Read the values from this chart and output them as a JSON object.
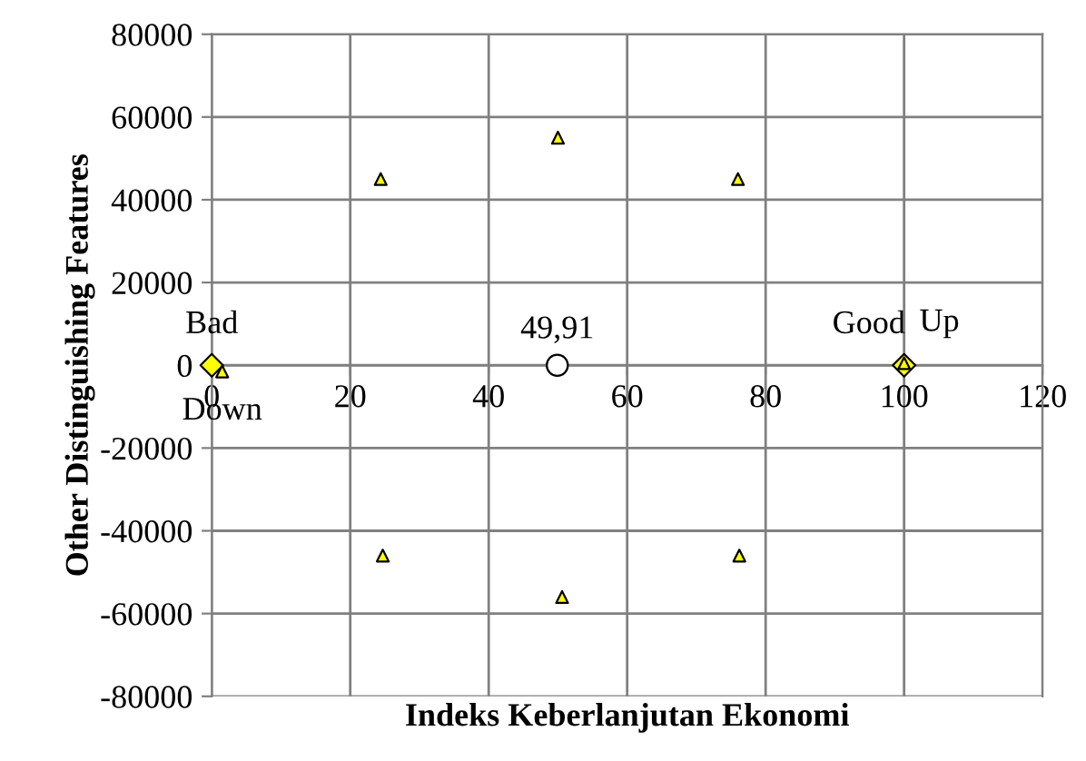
{
  "chart_data": {
    "type": "scatter",
    "xlabel": "Indeks Keberlanjutan Ekonomi",
    "ylabel": "Other Distinguishing Features",
    "series": [
      {
        "marker": "diamond",
        "color": "#ffff00",
        "x": [
          0,
          100
        ],
        "values": [
          0,
          0
        ]
      },
      {
        "marker": "triangle",
        "color": "#ffff00",
        "x": [
          24.4,
          50,
          76,
          24.7,
          50.6,
          76.2,
          1.5,
          100
        ],
        "values": [
          45000,
          55000,
          45000,
          -46000,
          -56000,
          -46000,
          -1500,
          500
        ]
      },
      {
        "marker": "circle",
        "color": "#ffffff",
        "x": [
          49.91
        ],
        "values": [
          0
        ]
      }
    ],
    "annotations": [
      {
        "text": "Bad",
        "x": 0,
        "y": 0
      },
      {
        "text": "Down",
        "x": 1.5,
        "y": -1500
      },
      {
        "text": "Good",
        "x": 100,
        "y": 0
      },
      {
        "text": "Up",
        "x": 100,
        "y": 500
      },
      {
        "text": "49,91",
        "x": 49.91,
        "y": 0
      }
    ],
    "xlim": [
      0,
      120
    ],
    "xticks": [
      0,
      20,
      40,
      60,
      80,
      100,
      120
    ],
    "ylim": [
      -80000,
      80000
    ],
    "yticks": [
      -80000,
      -60000,
      -40000,
      -20000,
      0,
      20000,
      40000,
      60000,
      80000
    ],
    "grid": true
  }
}
